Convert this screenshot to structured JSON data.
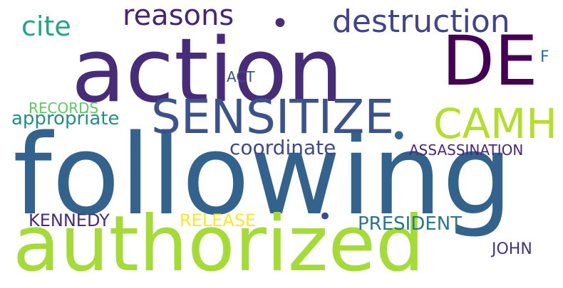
{
  "words": {
    "following": {
      "text": "following",
      "color": "#33638d"
    },
    "action": {
      "text": "action",
      "color": "#472c7a"
    },
    "authorized": {
      "text": "authorized",
      "color": "#a5db36"
    },
    "de": {
      "text": "DE",
      "color": "#440154"
    },
    "sensitize": {
      "text": "SENSITIZE",
      "color": "#3b528b"
    },
    "camh": {
      "text": "CAMH",
      "color": "#b5de2b"
    },
    "destruction": {
      "text": "destruction",
      "color": "#414487"
    },
    "reasons": {
      "text": "reasons",
      "color": "#482475"
    },
    "cite": {
      "text": "cite",
      "color": "#21a685"
    },
    "coordinate": {
      "text": "coordinate",
      "color": "#3e4a89"
    },
    "appropriate": {
      "text": "appropriate",
      "color": "#218f8d"
    },
    "president": {
      "text": "PRESIDENT",
      "color": "#2a788e"
    },
    "kennedy": {
      "text": "KENNEDY",
      "color": "#472d7b"
    },
    "release": {
      "text": "RELEASE",
      "color": "#fde725"
    },
    "john": {
      "text": "JOHN",
      "color": "#46337e"
    },
    "assassination": {
      "text": "ASSASSINATION",
      "color": "#482878"
    },
    "records": {
      "text": "RECORDS",
      "color": "#5ec962"
    },
    "act": {
      "text": "ACT",
      "color": "#3b528b"
    },
    "f": {
      "text": "F",
      "color": "#2c728e"
    },
    "dot1": {
      "text": "•",
      "color": "#472c7a"
    },
    "dot2": {
      "text": "•",
      "color": "#31688e"
    },
    "dot3": {
      "text": "•",
      "color": "#3e4a89"
    }
  }
}
